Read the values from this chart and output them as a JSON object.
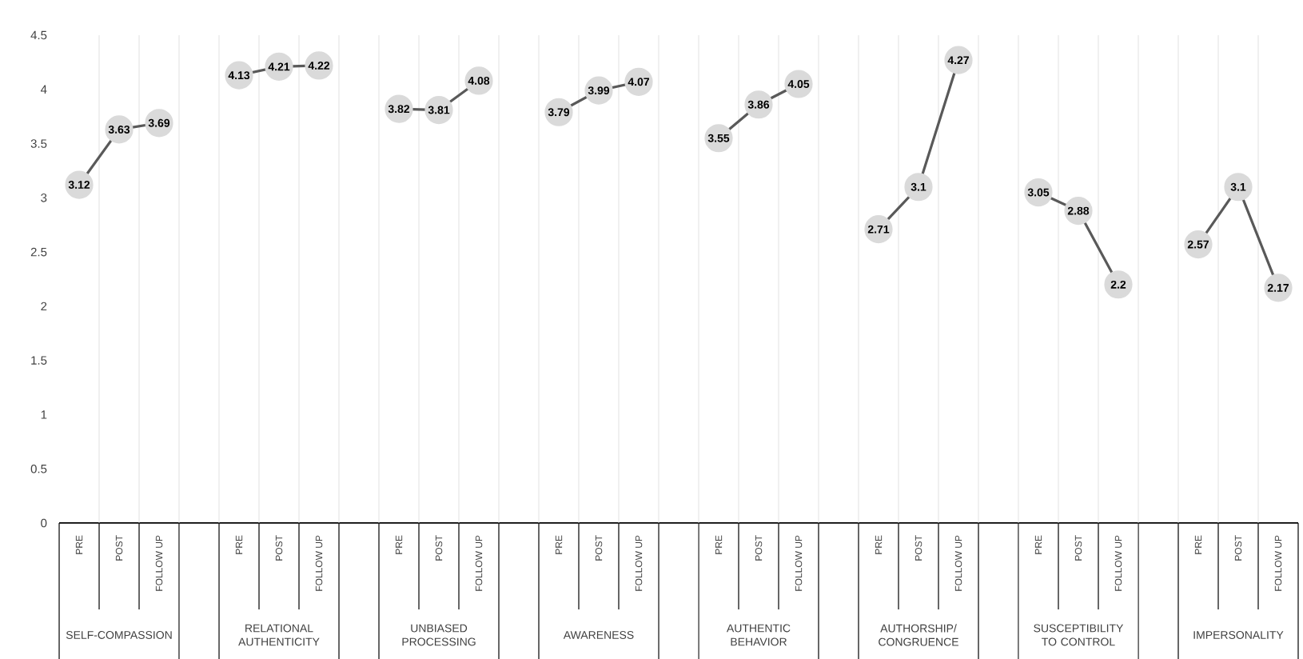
{
  "chart_data": {
    "type": "line",
    "categories": [
      "PRE",
      "POST",
      "FOLLOW UP",
      null,
      "PRE",
      "POST",
      "FOLLOW UP",
      null,
      "PRE",
      "POST",
      "FOLLOW UP",
      null,
      "PRE",
      "POST",
      "FOLLOW UP",
      null,
      "PRE",
      "POST",
      "FOLLOW UP",
      null,
      "PRE",
      "POST",
      "FOLLOW UP",
      null,
      "PRE",
      "POST",
      "FOLLOW UP",
      null,
      "PRE",
      "POST",
      "FOLLOW UP"
    ],
    "series": [
      {
        "color": "#595959",
        "values": [
          3.12,
          3.63,
          3.69,
          null,
          null,
          null,
          null,
          null,
          null,
          null,
          null,
          null,
          null,
          null,
          null,
          null,
          null,
          null,
          null,
          null,
          null,
          null,
          null,
          null,
          null,
          null,
          null,
          null,
          null,
          null,
          null
        ]
      },
      {
        "color": "#595959",
        "values": [
          null,
          null,
          null,
          null,
          4.13,
          4.21,
          4.22,
          null,
          null,
          null,
          null,
          null,
          null,
          null,
          null,
          null,
          null,
          null,
          null,
          null,
          null,
          null,
          null,
          null,
          null,
          null,
          null,
          null,
          null,
          null,
          null
        ]
      },
      {
        "color": "#595959",
        "values": [
          null,
          null,
          null,
          null,
          null,
          null,
          null,
          null,
          3.82,
          3.81,
          4.08,
          null,
          null,
          null,
          null,
          null,
          null,
          null,
          null,
          null,
          null,
          null,
          null,
          null,
          null,
          null,
          null,
          null,
          null,
          null,
          null
        ]
      },
      {
        "color": "#595959",
        "values": [
          null,
          null,
          null,
          null,
          null,
          null,
          null,
          null,
          null,
          null,
          null,
          null,
          3.79,
          3.99,
          4.07,
          null,
          null,
          null,
          null,
          null,
          null,
          null,
          null,
          null,
          null,
          null,
          null,
          null,
          null,
          null,
          null
        ]
      },
      {
        "color": "#595959",
        "values": [
          null,
          null,
          null,
          null,
          null,
          null,
          null,
          null,
          null,
          null,
          null,
          null,
          null,
          null,
          null,
          null,
          3.55,
          3.86,
          4.05,
          null,
          null,
          null,
          null,
          null,
          null,
          null,
          null,
          null,
          null,
          null,
          null
        ]
      },
      {
        "color": "#595959",
        "values": [
          null,
          null,
          null,
          null,
          null,
          null,
          null,
          null,
          null,
          null,
          null,
          null,
          null,
          null,
          null,
          null,
          null,
          null,
          null,
          null,
          2.71,
          3.1,
          4.27,
          null,
          null,
          null,
          null,
          null,
          null,
          null,
          null
        ]
      },
      {
        "color": "#595959",
        "values": [
          null,
          null,
          null,
          null,
          null,
          null,
          null,
          null,
          null,
          null,
          null,
          null,
          null,
          null,
          null,
          null,
          null,
          null,
          null,
          null,
          null,
          null,
          null,
          null,
          3.05,
          2.88,
          2.2,
          null,
          null,
          null,
          null
        ]
      },
      {
        "color": "#595959",
        "values": [
          null,
          null,
          null,
          null,
          null,
          null,
          null,
          null,
          null,
          null,
          null,
          null,
          null,
          null,
          null,
          null,
          null,
          null,
          null,
          null,
          null,
          null,
          null,
          null,
          null,
          null,
          null,
          null,
          2.57,
          3.1,
          2.17
        ]
      }
    ],
    "ylim": [
      0,
      4.5
    ],
    "yticks": [
      0,
      0.5,
      1,
      1.5,
      2,
      2.5,
      3,
      3.5,
      4,
      4.5
    ],
    "annotations": [
      "SELF-COMPASSION",
      "RELATIONAL AUTHENTICITY",
      "UNBIASED PROCESSING",
      "AWARENESS",
      "AUTHENTIC BEHAVIOR",
      "AUTHORSHIP/ CONGRUENCE",
      "SUSCEPTIBILITY TO CONTROL",
      "IMPERSONALITY"
    ],
    "grid": "x",
    "marker": "circle",
    "line_style": "solid",
    "data_labels": true
  }
}
